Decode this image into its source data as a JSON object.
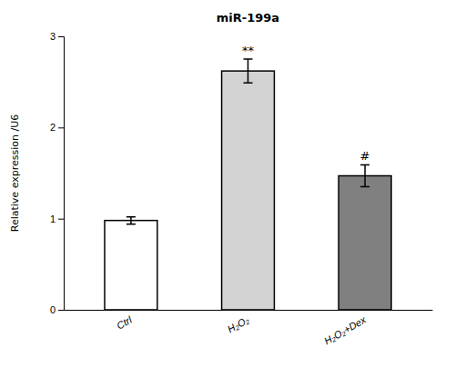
{
  "chart_data": {
    "type": "bar",
    "title": "miR-199a",
    "ylabel": "Relative expression /U6",
    "categories": [
      "Ctrl",
      "H₂O₂",
      "H₂O₂+Dex"
    ],
    "values": [
      0.98,
      2.62,
      1.47
    ],
    "errors": [
      0.04,
      0.13,
      0.12
    ],
    "colors": [
      "white",
      "#d3d3d3",
      "#808080"
    ],
    "annotations": [
      null,
      "**",
      "#"
    ],
    "ylim": [
      0,
      3.0
    ],
    "yticks": [
      0,
      1,
      2,
      3
    ],
    "grid": false
  }
}
